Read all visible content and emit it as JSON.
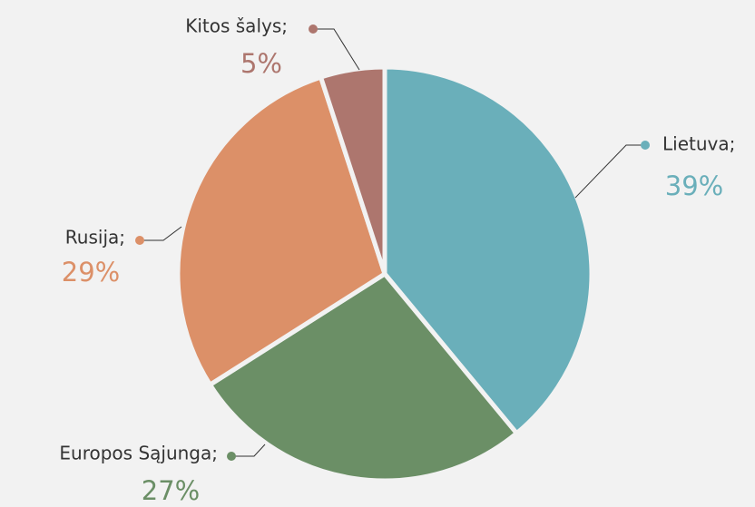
{
  "chart_data": {
    "type": "pie",
    "categories": [
      "Lietuva;",
      "Europos Sąjunga;",
      "Rusija;",
      "Kitos šalys;"
    ],
    "values": [
      39,
      27,
      29,
      5
    ],
    "value_labels": [
      "39%",
      "27%",
      "29%",
      "5%"
    ],
    "colors": [
      "#6aafba",
      "#6b8f66",
      "#dc9068",
      "#ad766e"
    ]
  }
}
